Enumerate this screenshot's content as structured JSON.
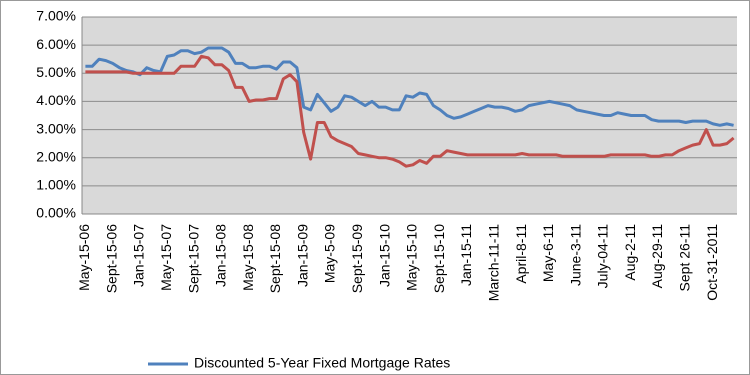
{
  "chart_data": {
    "type": "line",
    "categories": [
      "May-15-06",
      null,
      null,
      null,
      "Sept-15-06",
      null,
      null,
      null,
      "Jan-15-07",
      null,
      null,
      null,
      "May-15-07",
      null,
      null,
      null,
      "Sept-15-07",
      null,
      null,
      null,
      "Jan-15-08",
      null,
      null,
      null,
      "May-15-08",
      null,
      null,
      null,
      "Sept-15-08",
      null,
      null,
      null,
      "Jan-15-09",
      null,
      null,
      null,
      "May-5-09",
      null,
      null,
      null,
      "Sept-15-09",
      null,
      null,
      null,
      "Jan-15-10",
      null,
      null,
      null,
      "May-15-10",
      null,
      null,
      null,
      "Sept-15-10",
      null,
      null,
      null,
      "Jan-15-11",
      null,
      null,
      null,
      "March-11-11",
      null,
      null,
      null,
      "April-8-11",
      null,
      null,
      null,
      "May-6-11",
      null,
      null,
      null,
      "June-3-11",
      null,
      null,
      null,
      "July-04-11",
      null,
      null,
      null,
      "Aug-2-11",
      null,
      null,
      null,
      "Aug-29-11",
      null,
      null,
      null,
      "Sept 26-11",
      null,
      null,
      null,
      "Oct-31-2011",
      null,
      null,
      null
    ],
    "series": [
      {
        "name": "Discounted 5-Year Fixed Mortgage Rates",
        "color": "#4f81bd",
        "values": [
          5.25,
          5.25,
          5.5,
          5.45,
          5.35,
          5.2,
          5.1,
          5.05,
          4.95,
          5.2,
          5.1,
          5.05,
          5.6,
          5.65,
          5.8,
          5.8,
          5.7,
          5.75,
          5.9,
          5.9,
          5.9,
          5.75,
          5.35,
          5.35,
          5.2,
          5.2,
          5.25,
          5.25,
          5.15,
          5.4,
          5.4,
          5.2,
          3.8,
          3.7,
          4.25,
          3.95,
          3.65,
          3.8,
          4.2,
          4.15,
          4.0,
          3.85,
          4.0,
          3.8,
          3.8,
          3.7,
          3.7,
          4.2,
          4.15,
          4.3,
          4.25,
          3.85,
          3.7,
          3.5,
          3.4,
          3.45,
          3.55,
          3.65,
          3.75,
          3.85,
          3.8,
          3.8,
          3.75,
          3.65,
          3.7,
          3.85,
          3.9,
          3.95,
          4.0,
          3.95,
          3.9,
          3.85,
          3.7,
          3.65,
          3.6,
          3.55,
          3.5,
          3.5,
          3.6,
          3.55,
          3.5,
          3.5,
          3.5,
          3.35,
          3.3,
          3.3,
          3.3,
          3.3,
          3.25,
          3.3,
          3.3,
          3.3,
          3.2,
          3.15,
          3.2,
          3.15
        ]
      },
      {
        "color": "#c0504d",
        "values": [
          5.05,
          5.05,
          5.05,
          5.05,
          5.05,
          5.05,
          5.05,
          5.0,
          5.0,
          5.0,
          5.0,
          5.0,
          5.0,
          5.0,
          5.25,
          5.25,
          5.25,
          5.6,
          5.55,
          5.3,
          5.3,
          5.1,
          4.5,
          4.5,
          4.0,
          4.05,
          4.05,
          4.1,
          4.1,
          4.8,
          4.95,
          4.7,
          2.9,
          1.95,
          3.25,
          3.25,
          2.75,
          2.6,
          2.5,
          2.4,
          2.15,
          2.1,
          2.05,
          2.0,
          2.0,
          1.95,
          1.85,
          1.7,
          1.75,
          1.9,
          1.8,
          2.05,
          2.05,
          2.25,
          2.2,
          2.15,
          2.1,
          2.1,
          2.1,
          2.1,
          2.1,
          2.1,
          2.1,
          2.1,
          2.15,
          2.1,
          2.1,
          2.1,
          2.1,
          2.1,
          2.05,
          2.05,
          2.05,
          2.05,
          2.05,
          2.05,
          2.05,
          2.1,
          2.1,
          2.1,
          2.1,
          2.1,
          2.1,
          2.05,
          2.05,
          2.1,
          2.1,
          2.25,
          2.35,
          2.45,
          2.5,
          3.0,
          2.45,
          2.45,
          2.5,
          2.7
        ]
      }
    ],
    "ylim": [
      0,
      7
    ],
    "yticks": [
      {
        "value": 0,
        "label": "0.00%"
      },
      {
        "value": 1,
        "label": "1.00%"
      },
      {
        "value": 2,
        "label": "2.00%"
      },
      {
        "value": 3,
        "label": "3.00%"
      },
      {
        "value": 4,
        "label": "4.00%"
      },
      {
        "value": 5,
        "label": "5.00%"
      },
      {
        "value": 6,
        "label": "6.00%"
      },
      {
        "value": 7,
        "label": "7.00%"
      }
    ],
    "grid": true
  }
}
